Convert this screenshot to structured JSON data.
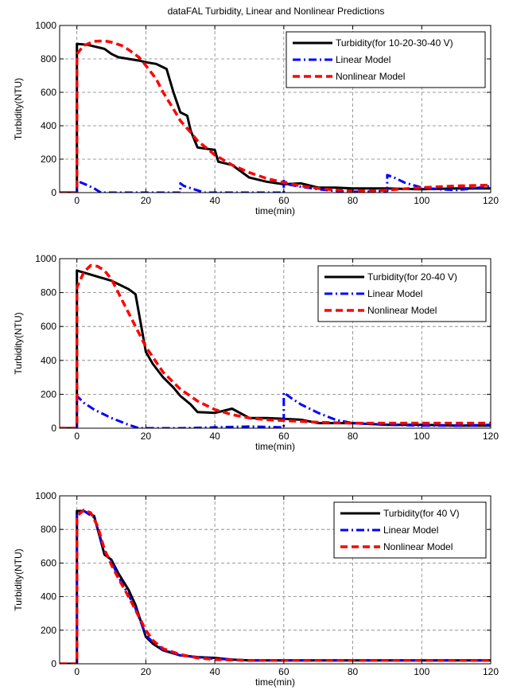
{
  "figure_title": "dataFAL  Turbidity, Linear and Nonlinear Predictions",
  "colors": {
    "turbidity": "#000000",
    "linear": "#0000ff",
    "nonlinear": "#ff0000",
    "grid": "#7f7f7f"
  },
  "chart_data": [
    {
      "type": "line",
      "title": "dataFAL  Turbidity, Linear and Nonlinear Predictions",
      "xlabel": "time(min)",
      "ylabel": "Turbidity(NTU)",
      "xlim": [
        -5,
        120
      ],
      "ylim": [
        0,
        1000
      ],
      "xticks": [
        0,
        20,
        40,
        60,
        80,
        100,
        120
      ],
      "yticks": [
        0,
        200,
        400,
        600,
        800,
        1000
      ],
      "grid": true,
      "legend_position": "top-right",
      "series": [
        {
          "name": "Turbidity(for 10-20-30-40 V)",
          "style": "solid",
          "x": [
            -5,
            0,
            0,
            3,
            5,
            8,
            10,
            12,
            15,
            18,
            20,
            23,
            26,
            28,
            30,
            32,
            33,
            35,
            40,
            41,
            45,
            50,
            55,
            60,
            65,
            70,
            75,
            80,
            90,
            95,
            100,
            110,
            120
          ],
          "y": [
            0,
            0,
            890,
            885,
            875,
            860,
            830,
            810,
            800,
            790,
            780,
            770,
            740,
            600,
            480,
            460,
            370,
            270,
            255,
            185,
            165,
            90,
            65,
            50,
            55,
            30,
            30,
            25,
            25,
            22,
            20,
            25,
            25
          ]
        },
        {
          "name": "Linear Model",
          "style": "dashdot",
          "x": [
            -5,
            0,
            0,
            3,
            5,
            7,
            30,
            30,
            31,
            34,
            37,
            60,
            60,
            61,
            65,
            70,
            75,
            80,
            85,
            90,
            90,
            92,
            95,
            100,
            105,
            110,
            115,
            120
          ],
          "y": [
            0,
            0,
            70,
            45,
            25,
            0,
            0,
            55,
            40,
            20,
            0,
            0,
            80,
            50,
            35,
            20,
            10,
            5,
            5,
            10,
            105,
            90,
            60,
            30,
            20,
            15,
            25,
            40
          ]
        },
        {
          "name": "Nonlinear Model",
          "style": "dashed",
          "x": [
            -5,
            0,
            0,
            2,
            5,
            8,
            10,
            13,
            15,
            18,
            20,
            23,
            25,
            28,
            30,
            33,
            35,
            38,
            40,
            43,
            45,
            50,
            55,
            60,
            65,
            70,
            75,
            80,
            85,
            90,
            100,
            110,
            120
          ],
          "y": [
            0,
            0,
            830,
            880,
            905,
            908,
            900,
            880,
            855,
            810,
            760,
            680,
            600,
            500,
            430,
            360,
            310,
            260,
            225,
            190,
            165,
            120,
            85,
            60,
            40,
            25,
            15,
            10,
            10,
            15,
            30,
            40,
            45
          ]
        }
      ]
    },
    {
      "type": "line",
      "xlabel": "time(min)",
      "ylabel": "Turbidity(NTU)",
      "xlim": [
        -5,
        120
      ],
      "ylim": [
        0,
        1000
      ],
      "xticks": [
        0,
        20,
        40,
        60,
        80,
        100,
        120
      ],
      "yticks": [
        0,
        200,
        400,
        600,
        800,
        1000
      ],
      "grid": true,
      "legend_position": "top-right",
      "series": [
        {
          "name": "Turbidity(for 20-40 V)",
          "style": "solid",
          "x": [
            -5,
            0,
            0,
            5,
            10,
            15,
            17,
            20,
            22,
            25,
            28,
            30,
            33,
            35,
            40,
            45,
            50,
            55,
            60,
            65,
            70,
            80,
            90,
            100,
            110,
            120
          ],
          "y": [
            0,
            0,
            930,
            900,
            870,
            820,
            790,
            450,
            380,
            300,
            240,
            190,
            140,
            95,
            90,
            115,
            60,
            60,
            55,
            50,
            30,
            30,
            20,
            20,
            15,
            15
          ]
        },
        {
          "name": "Linear Model",
          "style": "dashdot",
          "x": [
            -5,
            0,
            0,
            2,
            5,
            10,
            15,
            18,
            30,
            40,
            50,
            60,
            60,
            62,
            65,
            70,
            75,
            80,
            90,
            100,
            110,
            120
          ],
          "y": [
            0,
            0,
            190,
            150,
            110,
            60,
            20,
            0,
            0,
            5,
            10,
            5,
            210,
            180,
            140,
            90,
            50,
            30,
            20,
            15,
            15,
            20
          ]
        },
        {
          "name": "Nonlinear Model",
          "style": "dashed",
          "x": [
            -5,
            0,
            0,
            2,
            4,
            6,
            8,
            10,
            12,
            15,
            18,
            20,
            23,
            25,
            28,
            30,
            35,
            40,
            45,
            50,
            55,
            60,
            65,
            70,
            80,
            90,
            100,
            110,
            120
          ],
          "y": [
            0,
            0,
            830,
            920,
            960,
            955,
            930,
            880,
            800,
            680,
            560,
            480,
            390,
            330,
            270,
            230,
            160,
            110,
            80,
            60,
            50,
            45,
            40,
            35,
            30,
            30,
            30,
            30,
            30
          ]
        }
      ]
    },
    {
      "type": "line",
      "xlabel": "time(min)",
      "ylabel": "Turbidity(NTU)",
      "xlim": [
        -5,
        120
      ],
      "ylim": [
        0,
        1000
      ],
      "xticks": [
        0,
        20,
        40,
        60,
        80,
        100,
        120
      ],
      "yticks": [
        0,
        200,
        400,
        600,
        800,
        1000
      ],
      "grid": true,
      "legend_position": "top-right",
      "series": [
        {
          "name": "Turbidity(for 40 V)",
          "style": "solid",
          "x": [
            -5,
            0,
            0,
            2,
            5,
            8,
            10,
            12,
            15,
            17,
            20,
            22,
            25,
            30,
            35,
            40,
            45,
            50,
            60,
            80,
            100,
            120
          ],
          "y": [
            0,
            0,
            910,
            910,
            880,
            650,
            620,
            540,
            440,
            350,
            160,
            120,
            80,
            50,
            40,
            35,
            25,
            20,
            20,
            20,
            20,
            20
          ]
        },
        {
          "name": "Linear Model",
          "style": "dashdot",
          "x": [
            -5,
            0,
            0,
            2,
            5,
            8,
            10,
            12,
            15,
            17,
            20,
            22,
            25,
            30,
            35,
            40,
            45,
            50,
            60,
            80,
            100,
            120
          ],
          "y": [
            0,
            0,
            900,
            910,
            870,
            670,
            610,
            520,
            410,
            330,
            170,
            130,
            85,
            50,
            40,
            30,
            25,
            20,
            20,
            20,
            20,
            20
          ]
        },
        {
          "name": "Nonlinear Model",
          "style": "dashed",
          "x": [
            -5,
            0,
            0,
            2,
            4,
            6,
            8,
            10,
            12,
            15,
            18,
            20,
            22,
            25,
            30,
            35,
            40,
            50,
            60,
            80,
            100,
            120
          ],
          "y": [
            0,
            0,
            880,
            915,
            900,
            820,
            680,
            590,
            510,
            400,
            280,
            200,
            140,
            90,
            55,
            35,
            25,
            20,
            20,
            20,
            20,
            20
          ]
        }
      ]
    }
  ]
}
